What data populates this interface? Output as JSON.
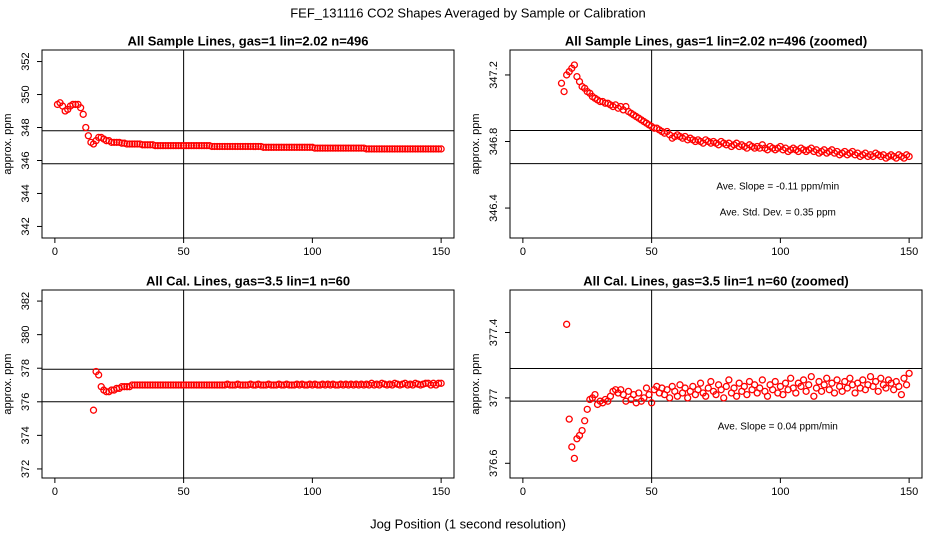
{
  "title": "FEF_131116  CO2 Shapes Averaged by Sample or Calibration",
  "xlabel": "Jog Position (1 second resolution)",
  "chart_data": [
    {
      "type": "scatter",
      "title": "All Sample Lines, gas=1 lin=2.02 n=496",
      "ylabel": "approx. ppm",
      "color": "#ff0000",
      "xlim": [
        -5,
        155
      ],
      "ylim": [
        341.3,
        352.7
      ],
      "xticks": [
        0,
        50,
        100,
        150
      ],
      "yticks": [
        342,
        344,
        346,
        348,
        350,
        352
      ],
      "hlines": [
        347.8,
        345.8
      ],
      "vline": 50,
      "x": [
        1,
        2,
        3,
        4,
        5,
        6,
        7,
        8,
        9,
        10,
        11,
        12,
        13,
        14,
        15,
        16,
        17,
        18,
        19,
        20,
        21,
        22,
        23,
        24,
        25,
        26,
        27,
        28,
        29,
        30,
        31,
        32,
        33,
        34,
        35,
        36,
        37,
        38,
        39,
        40,
        41,
        42,
        43,
        44,
        45,
        46,
        47,
        48,
        49,
        50,
        51,
        52,
        53,
        54,
        55,
        56,
        57,
        58,
        59,
        60,
        61,
        62,
        63,
        64,
        65,
        66,
        67,
        68,
        69,
        70,
        71,
        72,
        73,
        74,
        75,
        76,
        77,
        78,
        79,
        80,
        81,
        82,
        83,
        84,
        85,
        86,
        87,
        88,
        89,
        90,
        91,
        92,
        93,
        94,
        95,
        96,
        97,
        98,
        99,
        100,
        101,
        102,
        103,
        104,
        105,
        106,
        107,
        108,
        109,
        110,
        111,
        112,
        113,
        114,
        115,
        116,
        117,
        118,
        119,
        120,
        121,
        122,
        123,
        124,
        125,
        126,
        127,
        128,
        129,
        130,
        131,
        132,
        133,
        134,
        135,
        136,
        137,
        138,
        139,
        140,
        141,
        142,
        143,
        144,
        145,
        146,
        147,
        148,
        149,
        150
      ],
      "values": [
        349.4,
        349.5,
        349.3,
        349.0,
        349.1,
        349.3,
        349.4,
        349.4,
        349.4,
        349.2,
        348.8,
        348.0,
        347.5,
        347.1,
        347.0,
        347.2,
        347.4,
        347.4,
        347.3,
        347.2,
        347.2,
        347.1,
        347.1,
        347.1,
        347.1,
        347.05,
        347.05,
        347.0,
        347.0,
        347.0,
        347.0,
        347.0,
        347.0,
        346.95,
        346.95,
        346.95,
        346.95,
        346.95,
        346.9,
        346.9,
        346.9,
        346.9,
        346.9,
        346.9,
        346.9,
        346.9,
        346.9,
        346.9,
        346.9,
        346.9,
        346.9,
        346.9,
        346.9,
        346.9,
        346.9,
        346.9,
        346.9,
        346.9,
        346.9,
        346.9,
        346.85,
        346.85,
        346.85,
        346.85,
        346.85,
        346.85,
        346.85,
        346.85,
        346.85,
        346.85,
        346.85,
        346.85,
        346.85,
        346.85,
        346.85,
        346.85,
        346.85,
        346.85,
        346.85,
        346.85,
        346.8,
        346.8,
        346.8,
        346.8,
        346.8,
        346.8,
        346.8,
        346.8,
        346.8,
        346.8,
        346.8,
        346.8,
        346.8,
        346.8,
        346.8,
        346.8,
        346.8,
        346.8,
        346.8,
        346.8,
        346.75,
        346.75,
        346.75,
        346.75,
        346.75,
        346.75,
        346.75,
        346.75,
        346.75,
        346.75,
        346.75,
        346.75,
        346.75,
        346.75,
        346.75,
        346.75,
        346.75,
        346.75,
        346.75,
        346.75,
        346.7,
        346.7,
        346.7,
        346.7,
        346.7,
        346.7,
        346.7,
        346.7,
        346.7,
        346.7,
        346.7,
        346.7,
        346.7,
        346.7,
        346.7,
        346.7,
        346.7,
        346.7,
        346.7,
        346.7,
        346.7,
        346.7,
        346.7,
        346.7,
        346.7,
        346.7,
        346.7,
        346.7,
        346.7,
        346.7
      ]
    },
    {
      "type": "scatter",
      "title": "All Sample Lines, gas=1 lin=2.02 n=496 (zoomed)",
      "ylabel": "approx. ppm",
      "color": "#ff0000",
      "xlim": [
        -5,
        155
      ],
      "ylim": [
        346.22,
        347.35
      ],
      "xticks": [
        0,
        50,
        100,
        150
      ],
      "yticks": [
        346.4,
        346.8,
        347.2
      ],
      "hlines": [
        346.866,
        346.667
      ],
      "vline": 50,
      "annotations": [
        "Ave. Slope =  -0.11  ppm/min",
        "Ave. Std. Dev. =  0.35  ppm"
      ],
      "x": [
        15,
        16,
        17,
        18,
        19,
        20,
        21,
        22,
        23,
        24,
        25,
        26,
        27,
        28,
        29,
        30,
        31,
        32,
        33,
        34,
        35,
        36,
        37,
        38,
        39,
        40,
        41,
        42,
        43,
        44,
        45,
        46,
        47,
        48,
        49,
        50,
        51,
        52,
        53,
        54,
        55,
        56,
        57,
        58,
        59,
        60,
        61,
        62,
        63,
        64,
        65,
        66,
        67,
        68,
        69,
        70,
        71,
        72,
        73,
        74,
        75,
        76,
        77,
        78,
        79,
        80,
        81,
        82,
        83,
        84,
        85,
        86,
        87,
        88,
        89,
        90,
        91,
        92,
        93,
        94,
        95,
        96,
        97,
        98,
        99,
        100,
        101,
        102,
        103,
        104,
        105,
        106,
        107,
        108,
        109,
        110,
        111,
        112,
        113,
        114,
        115,
        116,
        117,
        118,
        119,
        120,
        121,
        122,
        123,
        124,
        125,
        126,
        127,
        128,
        129,
        130,
        131,
        132,
        133,
        134,
        135,
        136,
        137,
        138,
        139,
        140,
        141,
        142,
        143,
        144,
        145,
        146,
        147,
        148,
        149,
        150
      ],
      "values": [
        347.15,
        347.1,
        347.2,
        347.22,
        347.24,
        347.26,
        347.19,
        347.16,
        347.13,
        347.12,
        347.1,
        347.09,
        347.07,
        347.06,
        347.05,
        347.04,
        347.04,
        347.03,
        347.03,
        347.02,
        347.01,
        347.02,
        347.0,
        347.01,
        346.99,
        347.01,
        346.98,
        346.97,
        346.96,
        346.95,
        346.94,
        346.93,
        346.92,
        346.91,
        346.9,
        346.89,
        346.88,
        346.88,
        346.87,
        346.86,
        346.85,
        346.86,
        346.84,
        346.82,
        346.83,
        346.84,
        346.83,
        346.82,
        346.83,
        346.81,
        346.82,
        346.81,
        346.8,
        346.81,
        346.8,
        346.79,
        346.81,
        346.8,
        346.79,
        346.8,
        346.79,
        346.78,
        346.8,
        346.79,
        346.78,
        346.79,
        346.77,
        346.78,
        346.79,
        346.77,
        346.78,
        346.77,
        346.76,
        346.78,
        346.77,
        346.76,
        346.77,
        346.76,
        346.78,
        346.76,
        346.75,
        346.77,
        346.76,
        346.75,
        346.76,
        346.77,
        346.75,
        346.76,
        346.74,
        346.75,
        346.76,
        346.75,
        346.74,
        346.76,
        346.75,
        346.74,
        346.75,
        346.76,
        346.74,
        346.75,
        346.73,
        346.74,
        346.75,
        346.73,
        346.74,
        346.75,
        346.73,
        346.74,
        346.72,
        346.73,
        346.74,
        346.72,
        346.73,
        346.74,
        346.72,
        346.73,
        346.71,
        346.72,
        346.73,
        346.71,
        346.72,
        346.71,
        346.73,
        346.72,
        346.71,
        346.72,
        346.7,
        346.71,
        346.72,
        346.71,
        346.7,
        346.72,
        346.71,
        346.7,
        346.72,
        346.71
      ]
    },
    {
      "type": "scatter",
      "title": "All Cal. Lines, gas=3.5 lin=1 n=60",
      "ylabel": "approx. ppm",
      "color": "#ff0000",
      "xlim": [
        -5,
        155
      ],
      "ylim": [
        371.46,
        382.66
      ],
      "xticks": [
        0,
        50,
        100,
        150
      ],
      "yticks": [
        372,
        374,
        376,
        378,
        380,
        382
      ],
      "hlines": [
        377.94,
        376.0
      ],
      "vline": 50,
      "x": [
        15,
        16,
        17,
        18,
        19,
        20,
        21,
        22,
        23,
        24,
        25,
        26,
        27,
        28,
        29,
        30,
        31,
        32,
        33,
        34,
        35,
        36,
        37,
        38,
        39,
        40,
        41,
        42,
        43,
        44,
        45,
        46,
        47,
        48,
        49,
        50,
        51,
        52,
        53,
        54,
        55,
        56,
        57,
        58,
        59,
        60,
        61,
        62,
        63,
        64,
        65,
        66,
        67,
        68,
        69,
        70,
        71,
        72,
        73,
        74,
        75,
        76,
        77,
        78,
        79,
        80,
        81,
        82,
        83,
        84,
        85,
        86,
        87,
        88,
        89,
        90,
        91,
        92,
        93,
        94,
        95,
        96,
        97,
        98,
        99,
        100,
        101,
        102,
        103,
        104,
        105,
        106,
        107,
        108,
        109,
        110,
        111,
        112,
        113,
        114,
        115,
        116,
        117,
        118,
        119,
        120,
        121,
        122,
        123,
        124,
        125,
        126,
        127,
        128,
        129,
        130,
        131,
        132,
        133,
        134,
        135,
        136,
        137,
        138,
        139,
        140,
        141,
        142,
        143,
        144,
        145,
        146,
        147,
        148,
        149,
        150
      ],
      "values": [
        375.5,
        377.8,
        377.6,
        376.9,
        376.7,
        376.6,
        376.6,
        376.7,
        376.7,
        376.8,
        376.8,
        376.9,
        376.9,
        376.9,
        376.9,
        377.0,
        377.0,
        377.0,
        377.0,
        377.0,
        377.0,
        377.0,
        377.0,
        377.0,
        377.0,
        377.0,
        377.0,
        377.0,
        377.0,
        377.0,
        377.0,
        377.0,
        377.0,
        377.0,
        377.0,
        377.0,
        377.0,
        377.0,
        377.0,
        377.0,
        377.0,
        377.0,
        377.0,
        377.0,
        377.0,
        377.0,
        377.0,
        377.0,
        377.0,
        377.0,
        377.0,
        377.0,
        377.05,
        377.0,
        377.0,
        377.0,
        377.05,
        377.0,
        377.0,
        377.0,
        377.0,
        377.05,
        377.0,
        377.0,
        377.05,
        377.0,
        377.0,
        377.0,
        377.05,
        377.0,
        377.0,
        377.0,
        377.05,
        377.0,
        377.0,
        377.05,
        377.0,
        377.0,
        377.0,
        377.05,
        377.0,
        377.05,
        377.0,
        377.0,
        377.05,
        377.0,
        377.05,
        377.0,
        377.0,
        377.05,
        377.0,
        377.05,
        377.0,
        377.05,
        377.0,
        377.0,
        377.05,
        377.0,
        377.05,
        377.0,
        377.05,
        377.0,
        377.05,
        377.0,
        377.05,
        377.0,
        377.05,
        377.0,
        377.1,
        377.0,
        377.05,
        377.0,
        377.1,
        377.05,
        377.0,
        377.05,
        377.0,
        377.1,
        377.05,
        377.0,
        377.05,
        377.1,
        377.0,
        377.05,
        377.0,
        377.1,
        377.05,
        377.0,
        377.05,
        377.1,
        377.1,
        377.0,
        377.1,
        377.0,
        377.1,
        377.1
      ]
    },
    {
      "type": "scatter",
      "title": "All Cal. Lines, gas=3.5 lin=1 n=60 (zoomed)",
      "ylabel": "approx. ppm",
      "color": "#ff0000",
      "xlim": [
        -5,
        155
      ],
      "ylim": [
        376.51,
        377.66
      ],
      "xticks": [
        0,
        50,
        100,
        150
      ],
      "yticks": [
        376.6,
        377.0,
        377.4
      ],
      "hlines": [
        377.18,
        376.98
      ],
      "vline": 50,
      "annotations": [
        "Ave. Slope =  0.04  ppm/min"
      ],
      "x": [
        17,
        18,
        19,
        20,
        21,
        22,
        23,
        24,
        25,
        26,
        27,
        28,
        29,
        30,
        31,
        32,
        33,
        34,
        35,
        36,
        37,
        38,
        39,
        40,
        41,
        42,
        43,
        44,
        45,
        46,
        47,
        48,
        49,
        50,
        51,
        52,
        53,
        54,
        55,
        56,
        57,
        58,
        59,
        60,
        61,
        62,
        63,
        64,
        65,
        66,
        67,
        68,
        69,
        70,
        71,
        72,
        73,
        74,
        75,
        76,
        77,
        78,
        79,
        80,
        81,
        82,
        83,
        84,
        85,
        86,
        87,
        88,
        89,
        90,
        91,
        92,
        93,
        94,
        95,
        96,
        97,
        98,
        99,
        100,
        101,
        102,
        103,
        104,
        105,
        106,
        107,
        108,
        109,
        110,
        111,
        112,
        113,
        114,
        115,
        116,
        117,
        118,
        119,
        120,
        121,
        122,
        123,
        124,
        125,
        126,
        127,
        128,
        129,
        130,
        131,
        132,
        133,
        134,
        135,
        136,
        137,
        138,
        139,
        140,
        141,
        142,
        143,
        144,
        145,
        146,
        147,
        148,
        149,
        150
      ],
      "values": [
        377.45,
        376.87,
        376.7,
        376.63,
        376.75,
        376.77,
        376.8,
        376.86,
        376.93,
        376.99,
        377.0,
        377.02,
        376.96,
        376.98,
        376.97,
        376.99,
        376.98,
        377.01,
        377.04,
        377.05,
        377.03,
        377.05,
        377.02,
        376.98,
        377.04,
        376.99,
        377.02,
        376.97,
        377.03,
        376.98,
        377.0,
        377.06,
        377.02,
        376.97,
        377.05,
        377.07,
        377.03,
        377.06,
        377.02,
        377.05,
        377.0,
        377.07,
        377.04,
        377.01,
        377.08,
        377.03,
        377.06,
        377.0,
        377.04,
        377.07,
        377.02,
        377.05,
        377.09,
        377.03,
        377.01,
        377.06,
        377.1,
        377.04,
        377.02,
        377.08,
        377.05,
        377.0,
        377.07,
        377.11,
        377.03,
        377.06,
        377.01,
        377.09,
        377.04,
        377.07,
        377.02,
        377.1,
        377.05,
        377.08,
        377.03,
        377.06,
        377.11,
        377.04,
        377.01,
        377.08,
        377.05,
        377.1,
        377.03,
        377.07,
        377.02,
        377.09,
        377.05,
        377.12,
        377.06,
        377.03,
        377.09,
        377.07,
        377.11,
        377.04,
        377.08,
        377.13,
        377.01,
        377.06,
        377.1,
        377.04,
        377.08,
        377.12,
        377.05,
        377.09,
        377.03,
        377.11,
        377.07,
        377.04,
        377.1,
        377.06,
        377.12,
        377.08,
        377.03,
        377.09,
        377.06,
        377.11,
        377.05,
        377.08,
        377.13,
        377.07,
        377.1,
        377.04,
        377.12,
        377.08,
        377.06,
        377.11,
        377.09,
        377.05,
        377.1,
        377.07,
        377.02,
        377.12,
        377.08,
        377.15
      ]
    }
  ]
}
